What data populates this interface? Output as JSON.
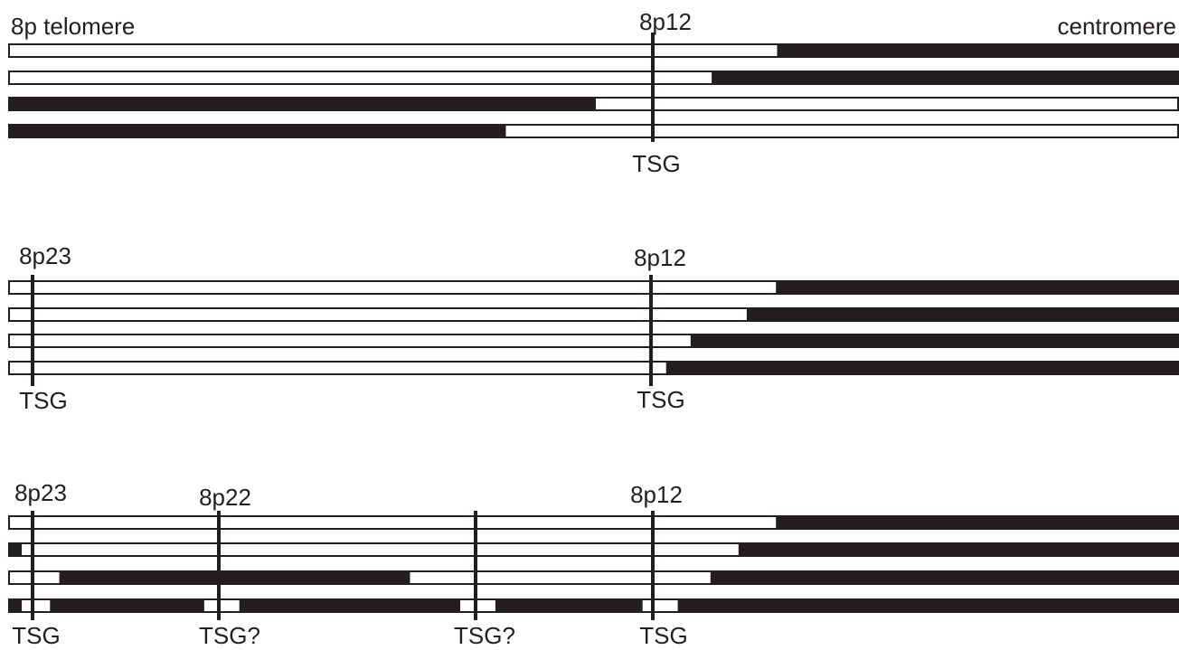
{
  "colors": {
    "ink": "#231f20",
    "paper": "#ffffff"
  },
  "panels": [
    {
      "end_labels": {
        "left": "8p telomere",
        "right": "centromere"
      },
      "markers": [
        {
          "band": "8p12",
          "gene": "TSG"
        }
      ],
      "chromosomes": [
        {
          "segments": [
            {
              "state": "retained",
              "from": 0.0,
              "to": 0.657
            },
            {
              "state": "deleted",
              "from": 0.657,
              "to": 1.0
            }
          ]
        },
        {
          "segments": [
            {
              "state": "retained",
              "from": 0.0,
              "to": 0.601
            },
            {
              "state": "deleted",
              "from": 0.601,
              "to": 1.0
            }
          ]
        },
        {
          "segments": [
            {
              "state": "deleted",
              "from": 0.0,
              "to": 0.502
            },
            {
              "state": "retained",
              "from": 0.502,
              "to": 1.0
            }
          ]
        },
        {
          "segments": [
            {
              "state": "deleted",
              "from": 0.0,
              "to": 0.425
            },
            {
              "state": "retained",
              "from": 0.425,
              "to": 1.0
            }
          ]
        }
      ]
    },
    {
      "markers": [
        {
          "band": "8p23",
          "gene": "TSG"
        },
        {
          "band": "8p12",
          "gene": "TSG"
        }
      ],
      "chromosomes": [
        {
          "segments": [
            {
              "state": "retained",
              "from": 0.0,
              "to": 0.656
            },
            {
              "state": "deleted",
              "from": 0.656,
              "to": 1.0
            }
          ]
        },
        {
          "segments": [
            {
              "state": "retained",
              "from": 0.0,
              "to": 0.631
            },
            {
              "state": "deleted",
              "from": 0.631,
              "to": 1.0
            }
          ]
        },
        {
          "segments": [
            {
              "state": "retained",
              "from": 0.0,
              "to": 0.583
            },
            {
              "state": "deleted",
              "from": 0.583,
              "to": 1.0
            }
          ]
        },
        {
          "segments": [
            {
              "state": "retained",
              "from": 0.0,
              "to": 0.562
            },
            {
              "state": "deleted",
              "from": 0.562,
              "to": 1.0
            }
          ]
        }
      ]
    },
    {
      "markers": [
        {
          "band": "8p23",
          "gene": "TSG"
        },
        {
          "band": "8p22",
          "gene": "TSG?"
        },
        {
          "band": "",
          "gene": "TSG?"
        },
        {
          "band": "8p12",
          "gene": "TSG"
        }
      ],
      "chromosomes": [
        {
          "segments": [
            {
              "state": "retained",
              "from": 0.0,
              "to": 0.656
            },
            {
              "state": "deleted",
              "from": 0.656,
              "to": 1.0
            }
          ]
        },
        {
          "segments": [
            {
              "state": "deleted",
              "from": 0.0,
              "to": 0.011
            },
            {
              "state": "retained",
              "from": 0.011,
              "to": 0.624
            },
            {
              "state": "deleted",
              "from": 0.624,
              "to": 1.0
            }
          ]
        },
        {
          "segments": [
            {
              "state": "retained",
              "from": 0.0,
              "to": 0.043
            },
            {
              "state": "deleted",
              "from": 0.043,
              "to": 0.343
            },
            {
              "state": "retained",
              "from": 0.343,
              "to": 0.6
            },
            {
              "state": "deleted",
              "from": 0.6,
              "to": 1.0
            }
          ]
        },
        {
          "segments": [
            {
              "state": "deleted",
              "from": 0.0,
              "to": 0.011
            },
            {
              "state": "retained",
              "from": 0.011,
              "to": 0.035
            },
            {
              "state": "deleted",
              "from": 0.035,
              "to": 0.167
            },
            {
              "state": "retained",
              "from": 0.167,
              "to": 0.197
            },
            {
              "state": "deleted",
              "from": 0.197,
              "to": 0.386
            },
            {
              "state": "retained",
              "from": 0.386,
              "to": 0.416
            },
            {
              "state": "deleted",
              "from": 0.416,
              "to": 0.542
            },
            {
              "state": "retained",
              "from": 0.542,
              "to": 0.572
            },
            {
              "state": "deleted",
              "from": 0.572,
              "to": 1.0
            }
          ]
        }
      ]
    }
  ]
}
